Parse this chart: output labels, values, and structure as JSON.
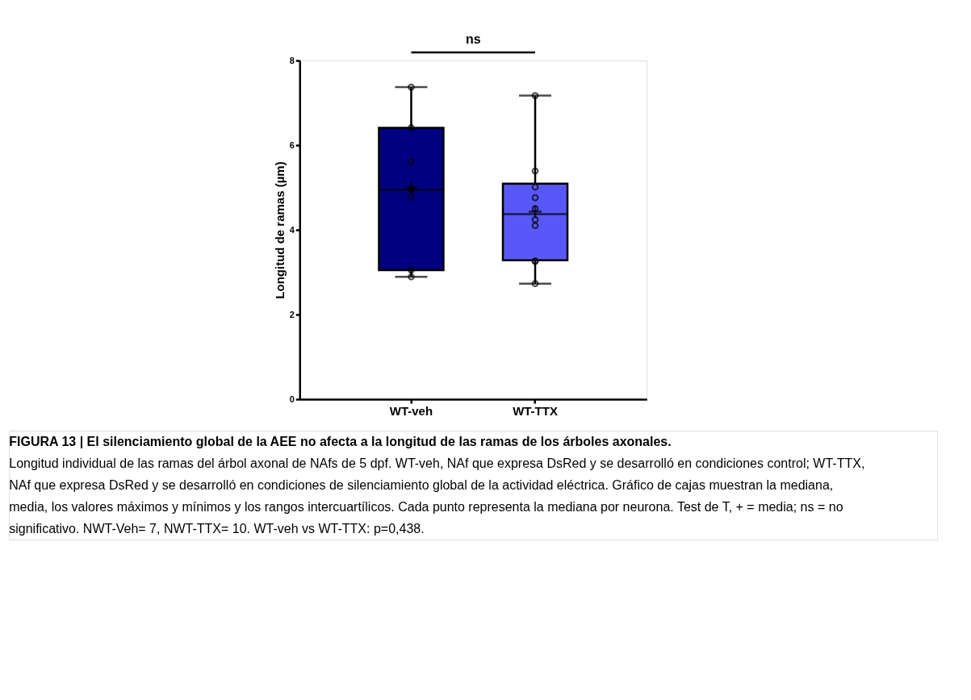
{
  "chart_data": {
    "type": "box",
    "ylabel": "Longitud de ramas (µm)",
    "categories": [
      "WT-veh",
      "WT-TTX"
    ],
    "colors": [
      "#000080",
      "#5858f8"
    ],
    "boxes": [
      {
        "low": 2.89,
        "q1": 3.05,
        "median": 4.95,
        "q3": 6.41,
        "high": 7.37,
        "mean": 5.0
      },
      {
        "low": 2.73,
        "q1": 3.28,
        "median": 4.37,
        "q3": 5.09,
        "high": 7.17,
        "mean": 4.43
      }
    ],
    "series": [
      {
        "type": "scatter",
        "color": "#000000",
        "x": [
          "WT-veh",
          "WT-veh",
          "WT-veh",
          "WT-veh",
          "WT-veh",
          "WT-veh",
          "WT-veh"
        ],
        "values": [
          7.37,
          6.41,
          5.61,
          4.95,
          4.78,
          3.05,
          2.89
        ]
      },
      {
        "type": "scatter",
        "color": "#000000",
        "x": [
          "WT-TTX",
          "WT-TTX",
          "WT-TTX",
          "WT-TTX",
          "WT-TTX",
          "WT-TTX",
          "WT-TTX",
          "WT-TTX",
          "WT-TTX",
          "WT-TTX"
        ],
        "values": [
          7.17,
          5.39,
          5.01,
          4.76,
          4.5,
          4.24,
          4.1,
          3.26,
          3.26,
          2.73
        ]
      }
    ],
    "marker": "circle",
    "ylim": [
      0,
      8
    ],
    "yticks": [
      0,
      2,
      4,
      6,
      8
    ],
    "grid": false,
    "annotations": [
      "ns",
      "FIGURA 13 | El silenciamiento global de la AEE no afecta a la longitud de las ramas de los árboles axonales.",
      "Longitud individual de las ramas del árbol axonal de NAfs de 5 dpf. WT-veh, NAf que expresa DsRed y se desarrolló en condiciones control; WT-TTX, NAf que expresa DsRed y se desarrolló en condiciones de silenciamiento global de la actividad eléctrica. Gráfico de cajas muestran la mediana, media, los valores máximos y mínimos y los rangos intercuartílicos. Cada punto representa la mediana por neurona. Test de T, + = media; ns = no significativo. NWT-Veh= 7, NWT-TTX= 10. WT-veh vs WT-TTX: p=0,438."
    ]
  }
}
